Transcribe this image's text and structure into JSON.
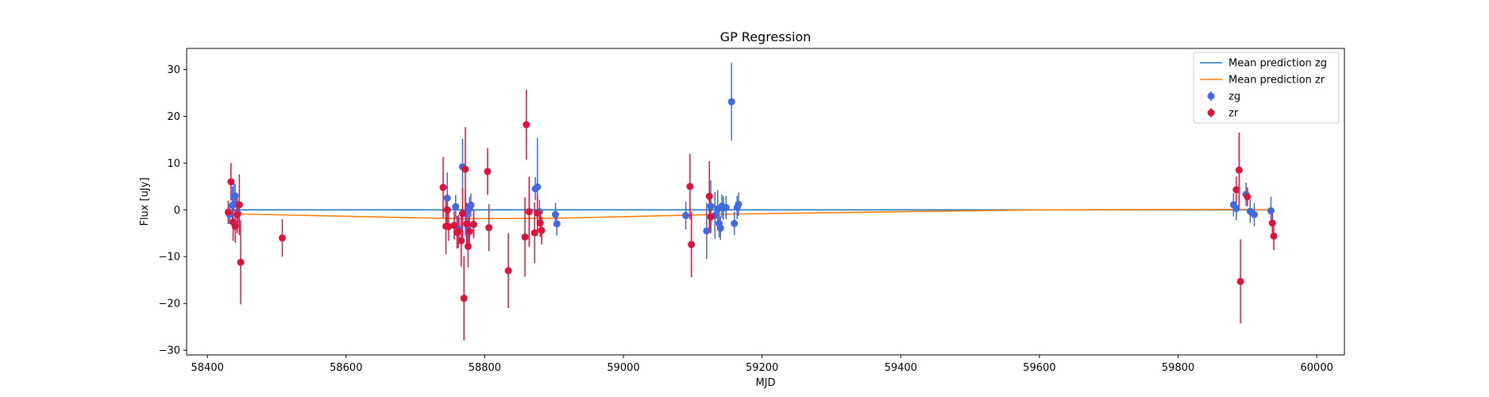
{
  "chart_data": {
    "type": "scatter",
    "title": "GP Regression",
    "xlabel": "MJD",
    "ylabel": "Flux [uJy]",
    "xlim": [
      58370,
      60040
    ],
    "ylim": [
      -31,
      34.5
    ],
    "xticks": [
      58400,
      58600,
      58800,
      59000,
      59200,
      59400,
      59600,
      59800,
      60000
    ],
    "yticks": [
      -30,
      -20,
      -10,
      0,
      10,
      20,
      30
    ],
    "grid": false,
    "legend_position": "top-right",
    "lines": [
      {
        "name": "Mean prediction zg",
        "color": "#1f77b4",
        "x": [
          58430,
          59935
        ],
        "y": [
          0.0,
          0.0
        ]
      },
      {
        "name": "Mean prediction zr",
        "color": "#ff7f0e",
        "x": [
          58430,
          58450,
          58770,
          58900,
          59100,
          59160,
          59600,
          59880,
          59935
        ],
        "y": [
          -0.6,
          -0.9,
          -1.9,
          -1.8,
          -1.1,
          -0.9,
          0.0,
          0.1,
          0.0
        ]
      }
    ],
    "series": [
      {
        "name": "zg",
        "color": "#4169e1",
        "x": [
          58432,
          58436,
          58438,
          58440,
          58442,
          58444,
          58746,
          58758,
          58763,
          58768,
          58772,
          58776,
          58778,
          58780,
          58873,
          58876,
          58879,
          58902,
          58904,
          59090,
          59120,
          59126,
          59132,
          59136,
          59138,
          59140,
          59142,
          59144,
          59148,
          59156,
          59160,
          59164,
          59166,
          59880,
          59884,
          59898,
          59904,
          59910,
          59934
        ],
        "y": [
          -1.0,
          1.0,
          2.8,
          3.0,
          1.2,
          -0.8,
          2.5,
          0.7,
          -4.1,
          9.2,
          -0.7,
          -3.3,
          0.3,
          1.0,
          4.5,
          4.9,
          -0.4,
          -1.0,
          -3.0,
          -1.2,
          -4.5,
          0.8,
          -1.2,
          0.2,
          -2.9,
          -3.9,
          0.8,
          0.4,
          0.5,
          23.1,
          -2.9,
          0.5,
          1.2,
          1.1,
          0.3,
          3.3,
          -0.3,
          -1.0,
          -0.2
        ],
        "yerr": [
          2.0,
          4.0,
          3.0,
          2.5,
          2.5,
          2.5,
          5.5,
          2.5,
          2.5,
          6.0,
          5.0,
          3.5,
          2.5,
          2.5,
          2.5,
          10.5,
          2.5,
          2.5,
          2.5,
          3.0,
          6.0,
          5.5,
          5.0,
          4.0,
          3.0,
          2.5,
          2.5,
          2.5,
          2.5,
          8.3,
          2.5,
          2.5,
          2.5,
          2.5,
          2.5,
          2.5,
          2.5,
          2.5,
          3.0
        ]
      },
      {
        "name": "zr",
        "color": "#dc143c",
        "x": [
          58430,
          58434,
          58437,
          58440,
          58443,
          58446,
          58448,
          58508,
          58740,
          58744,
          58746,
          58748,
          58756,
          58760,
          58762,
          58766,
          58768,
          58770,
          58772,
          58774,
          58776,
          58778,
          58784,
          58804,
          58806,
          58834,
          58858,
          58860,
          58864,
          58872,
          58876,
          58880,
          58882,
          59096,
          59098,
          59124,
          59126,
          59884,
          59888,
          59890,
          59900,
          59936,
          59938
        ],
        "y": [
          -0.5,
          6.0,
          -2.6,
          -3.5,
          -1.0,
          1.1,
          -11.2,
          -6.0,
          4.8,
          -3.5,
          0.0,
          -3.6,
          -3.3,
          -4.8,
          -4.6,
          -6.6,
          -0.8,
          -18.9,
          8.7,
          -3.0,
          -7.8,
          -4.6,
          -3.1,
          8.2,
          -3.8,
          -13.0,
          -5.8,
          18.2,
          -0.4,
          -4.9,
          -0.7,
          -2.8,
          -4.4,
          5.0,
          -7.4,
          2.9,
          -1.5,
          4.3,
          8.5,
          -15.3,
          2.8,
          -2.8,
          -5.6
        ],
        "yerr": [
          2.5,
          4.0,
          4.0,
          3.5,
          4.0,
          6.5,
          9.0,
          4.0,
          6.5,
          6.0,
          3.5,
          3.0,
          3.0,
          3.5,
          3.5,
          5.5,
          5.5,
          9.0,
          9.0,
          4.5,
          4.5,
          3.0,
          3.0,
          5.0,
          5.0,
          8.0,
          8.5,
          7.5,
          7.5,
          6.5,
          4.0,
          3.0,
          3.0,
          7.0,
          7.0,
          7.5,
          3.5,
          2.8,
          8.0,
          9.0,
          2.0,
          3.0,
          3.0
        ]
      }
    ]
  }
}
